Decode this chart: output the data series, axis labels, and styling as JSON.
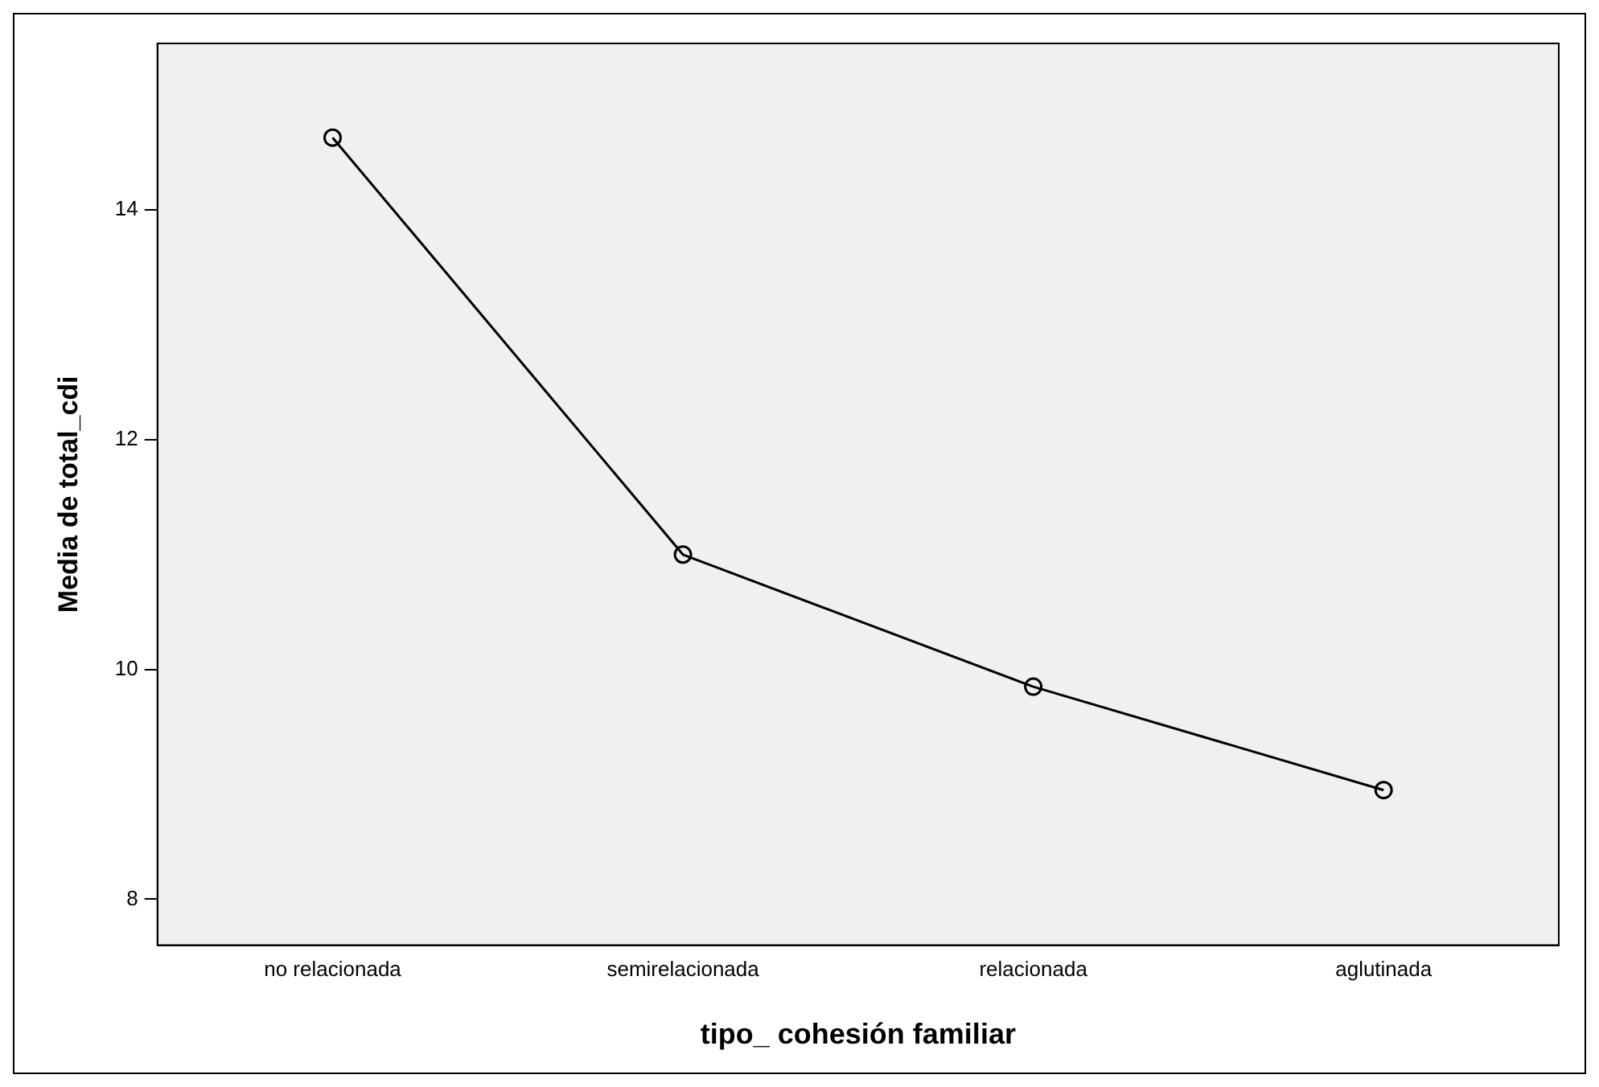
{
  "chart_data": {
    "type": "line",
    "xlabel": "tipo_ cohesión familiar",
    "ylabel": "Media de total_cdi",
    "categories": [
      "no relacionada",
      "semirelacionada",
      "relacionada",
      "aglutinada"
    ],
    "series": [
      {
        "color": "#000000",
        "values": [
          14.63,
          11.0,
          9.85,
          8.95
        ]
      }
    ],
    "ylim": [
      7.6,
      15.45
    ],
    "yticks": [
      8,
      10,
      12,
      14
    ],
    "grid": false,
    "legend": false,
    "marker": "circle",
    "line_style": "solid"
  }
}
